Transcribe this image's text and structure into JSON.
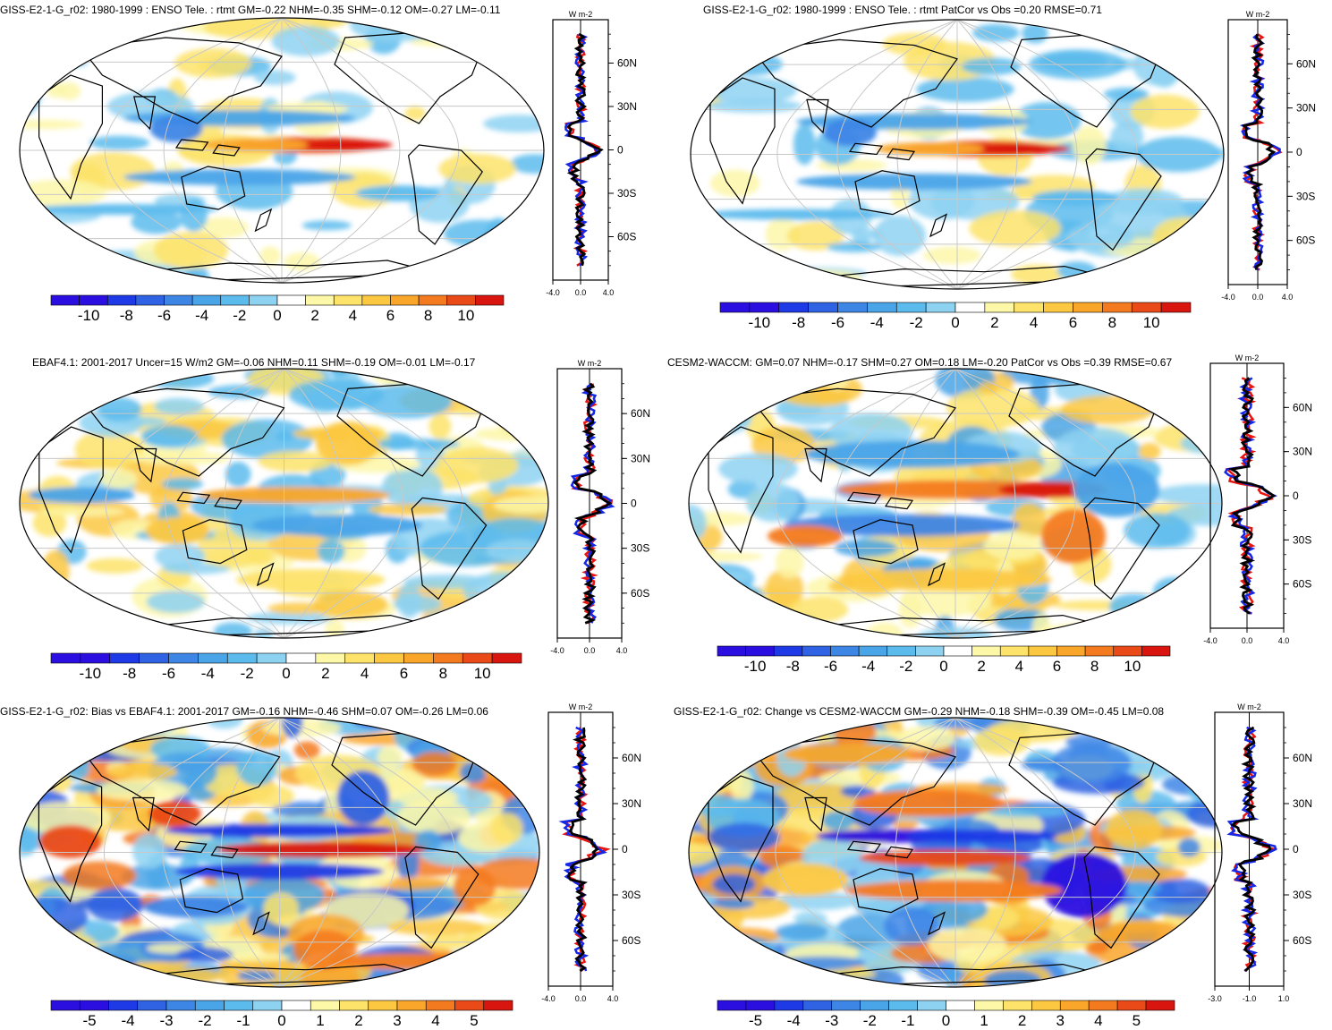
{
  "colors": {
    "scale": [
      "#2b0fe0",
      "#1e3ae6",
      "#2f63e3",
      "#3e86e6",
      "#4aa4e8",
      "#5cbbed",
      "#8ed2f2",
      "#ffffff",
      "#fdf7a8",
      "#fde36a",
      "#fcc842",
      "#f9a62a",
      "#f47a1f",
      "#ea4a17",
      "#d9150f"
    ],
    "obs_line": "#000000",
    "red_line": "#e8140f",
    "blue_line": "#1426e6",
    "grid": "#c8c8c8"
  },
  "panels": [
    {
      "id": "p1",
      "title": "GISS-E2-1-G_r02: 1980-1999 : ENSO Tele. : rtmt GM=-0.22 NHM=-0.35 SHM=-0.12 OM=-0.27 LM=-0.11",
      "units": "W m-2",
      "lat_ticks": [
        "60N",
        "30N",
        "0",
        "30S",
        "60S"
      ],
      "x_ticks": [
        "-4.0",
        "0.0",
        "4.0"
      ],
      "colorbar_labels": [
        "-10",
        "-8",
        "-6",
        "-4",
        "-2",
        "0",
        "2",
        "4",
        "6",
        "8",
        "10"
      ]
    },
    {
      "id": "p2",
      "title": "GISS-E2-1-G_r02: 1980-1999 : ENSO Tele. : rtmt PatCor vs Obs =0.20 RMSE=0.71",
      "units": "W m-2",
      "lat_ticks": [
        "60N",
        "30N",
        "0",
        "30S",
        "60S"
      ],
      "x_ticks": [
        "-4.0",
        "0.0",
        "4.0"
      ],
      "colorbar_labels": [
        "-10",
        "-8",
        "-6",
        "-4",
        "-2",
        "0",
        "2",
        "4",
        "6",
        "8",
        "10"
      ]
    },
    {
      "id": "p3",
      "title": "EBAF4.1: 2001-2017 Uncer=15 W/m2 GM=-0.06 NHM=0.11 SHM=-0.19 OM=-0.01 LM=-0.17",
      "units": "W m-2",
      "lat_ticks": [
        "60N",
        "30N",
        "0",
        "30S",
        "60S"
      ],
      "x_ticks": [
        "-4.0",
        "0.0",
        "4.0"
      ],
      "colorbar_labels": [
        "-10",
        "-8",
        "-6",
        "-4",
        "-2",
        "0",
        "2",
        "4",
        "6",
        "8",
        "10"
      ]
    },
    {
      "id": "p4",
      "title": "CESM2-WACCM: GM=0.07 NHM=-0.17 SHM=0.27 OM=0.18 LM=-0.20 PatCor vs Obs =0.39 RMSE=0.67",
      "units": "W m-2",
      "lat_ticks": [
        "60N",
        "30N",
        "0",
        "30S",
        "60S"
      ],
      "x_ticks": [
        "-4.0",
        "0.0",
        "4.0"
      ],
      "colorbar_labels": [
        "-10",
        "-8",
        "-6",
        "-4",
        "-2",
        "0",
        "2",
        "4",
        "6",
        "8",
        "10"
      ]
    },
    {
      "id": "p5",
      "title": "GISS-E2-1-G_r02: Bias vs EBAF4.1: 2001-2017 GM=-0.16 NHM=-0.46 SHM=0.07 OM=-0.26 LM=0.06",
      "units": "W m-2",
      "lat_ticks": [
        "60N",
        "30N",
        "0",
        "30S",
        "60S"
      ],
      "x_ticks": [
        "-4.0",
        "0.0",
        "4.0"
      ],
      "colorbar_labels": [
        "-5",
        "-4",
        "-3",
        "-2",
        "-1",
        "0",
        "1",
        "2",
        "3",
        "4",
        "5"
      ]
    },
    {
      "id": "p6",
      "title": "GISS-E2-1-G_r02: Change vs CESM2-WACCM GM=-0.29 NHM=-0.18 SHM=-0.39 OM=-0.45 LM=0.08",
      "units": "W m-2",
      "lat_ticks": [
        "60N",
        "30N",
        "0",
        "30S",
        "60S"
      ],
      "x_ticks": [
        "-3.0",
        "-1.0",
        "1.0"
      ],
      "colorbar_labels": [
        "-5",
        "-4",
        "-3",
        "-2",
        "-1",
        "0",
        "1",
        "2",
        "3",
        "4",
        "5"
      ]
    }
  ]
}
